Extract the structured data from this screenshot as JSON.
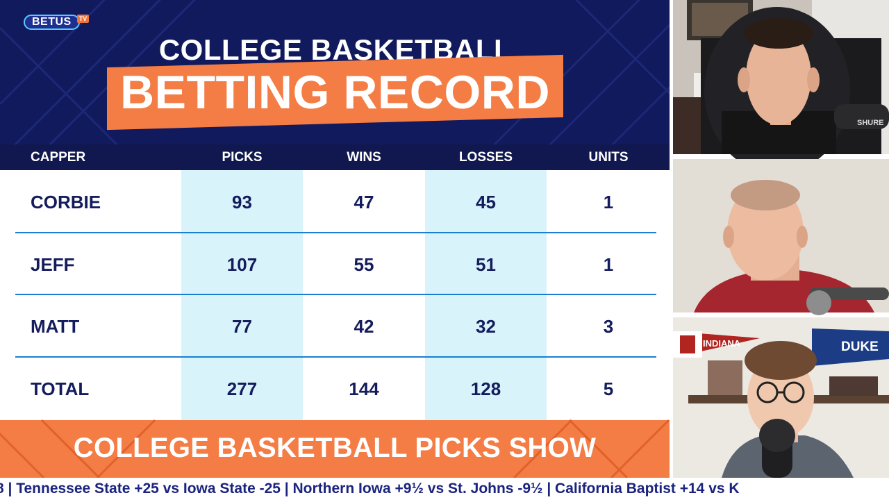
{
  "logo": {
    "brand": "BETUS",
    "suffix": "TV"
  },
  "title": {
    "line1": "COLLEGE BASKETBALL",
    "line2": "BETTING RECORD"
  },
  "table": {
    "headers": [
      "CAPPER",
      "PICKS",
      "WINS",
      "LOSSES",
      "UNITS"
    ],
    "rows": [
      {
        "capper": "CORBIE",
        "picks": "93",
        "wins": "47",
        "losses": "45",
        "units": "1"
      },
      {
        "capper": "JEFF",
        "picks": "107",
        "wins": "55",
        "losses": "51",
        "units": "1"
      },
      {
        "capper": "MATT",
        "picks": "77",
        "wins": "42",
        "losses": "32",
        "units": "3"
      },
      {
        "capper": "TOTAL",
        "picks": "277",
        "wins": "144",
        "losses": "128",
        "units": "5"
      }
    ]
  },
  "footer": {
    "show_title": "COLLEGE BASKETBALL PICKS SHOW"
  },
  "ticker": {
    "text": "8 | Tennessee State +25 vs Iowa State -25 | Northern Iowa +9½ vs St. Johns -9½ | California Baptist +14 vs K"
  },
  "webcams": {
    "pennant_left": "INDIANA",
    "pennant_right": "DUKE",
    "mic_brand": "SHURE"
  },
  "colors": {
    "navy": "#111a5c",
    "orange": "#f47c45",
    "light_blue": "#d9f3fb",
    "line_blue": "#1c7ed0",
    "text_navy": "#141c5c"
  }
}
